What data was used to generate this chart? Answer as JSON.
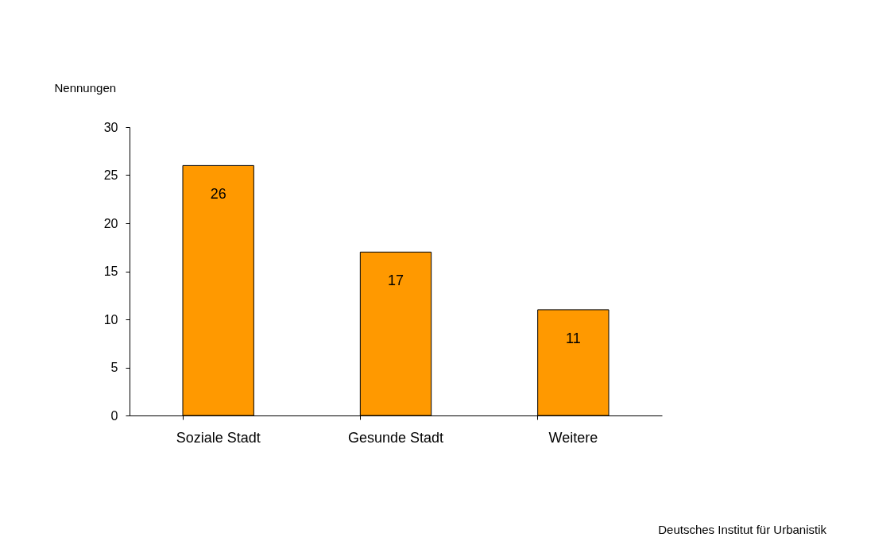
{
  "chart_data": {
    "type": "bar",
    "ylabel": "Nennungen",
    "categories": [
      "Soziale Stadt",
      "Gesunde Stadt",
      "Weitere"
    ],
    "values": [
      26,
      17,
      11
    ],
    "color": "#ff9900",
    "ylim": [
      0,
      30
    ],
    "yticks": [
      0,
      5,
      10,
      15,
      20,
      25,
      30
    ],
    "grid": false,
    "data_labels": true,
    "annotations": [
      "Deutsches Institut für Urbanistik"
    ]
  }
}
